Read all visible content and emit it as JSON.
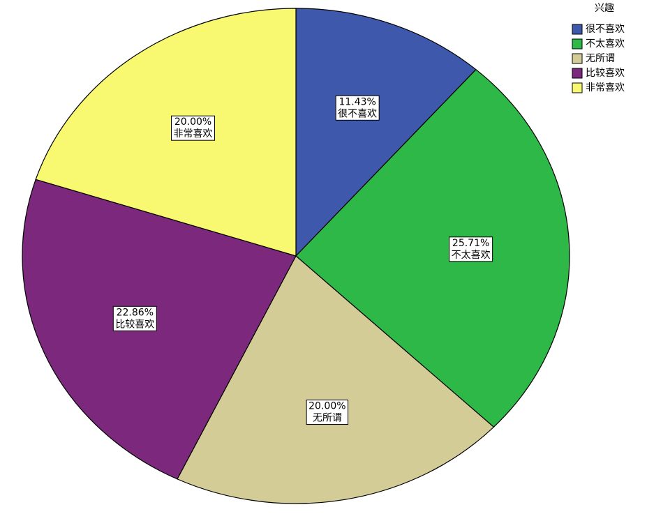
{
  "chart_data": {
    "type": "pie",
    "legend_title": "兴趣",
    "legend": "upper right",
    "categories": [
      "很不喜欢",
      "不太喜欢",
      "无所谓",
      "比较喜欢",
      "非常喜欢"
    ],
    "values": [
      11.43,
      25.71,
      20.0,
      22.86,
      20.0
    ],
    "value_labels": [
      "11.43%",
      "25.71%",
      "20.00%",
      "22.86%",
      "20.00%"
    ],
    "colors": [
      "#3e58ac",
      "#2eb848",
      "#d4cc96",
      "#7b287d",
      "#f9f871"
    ]
  }
}
